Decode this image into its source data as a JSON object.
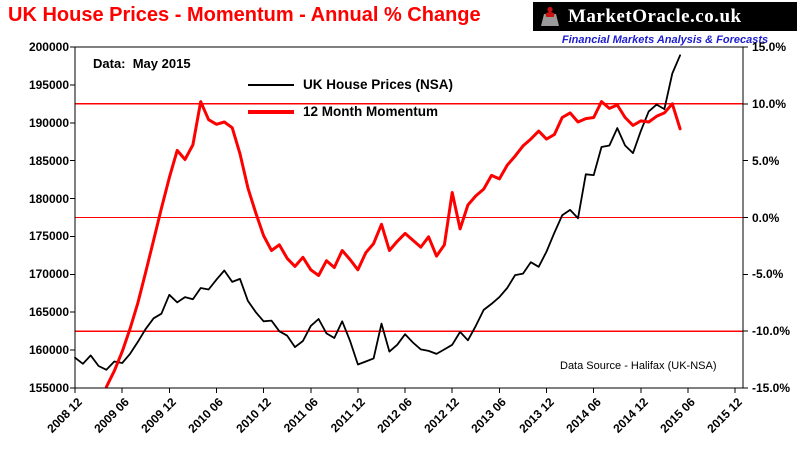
{
  "header": {
    "title": "UK House Prices - Momentum - Annual % Change",
    "logo": {
      "text": "MarketOracle.co.uk",
      "tagline": "Financial Markets Analysis & Forecasts",
      "background_color": "#000000",
      "tagline_color": "#1d1dcf"
    }
  },
  "chart_data": {
    "type": "line",
    "title": "UK House Prices - Momentum - Annual % Change",
    "annotation": "Data:  May 2015",
    "source_note": "Data Source - Halifax (UK-NSA)",
    "x_start_month": "2008-12",
    "x_end_month": "2015-05",
    "x_tick_step_months": 6,
    "x_domain_months": 85,
    "x_tick_labels": [
      "2008 12",
      "2009 06",
      "2009 12",
      "2010 06",
      "2010 12",
      "2011 06",
      "2011 12",
      "2012 06",
      "2012 12",
      "2013 06",
      "2013 12",
      "2014 06",
      "2014 12",
      "2015 06",
      "2015 12"
    ],
    "left_axis": {
      "min": 155000,
      "max": 200000,
      "step": 5000,
      "tick_labels": [
        "200000",
        "195000",
        "190000",
        "185000",
        "180000",
        "175000",
        "170000",
        "165000",
        "160000",
        "155000"
      ]
    },
    "right_axis": {
      "min": -15,
      "max": 15,
      "step": 5,
      "tick_labels": [
        "15.0%",
        "10.0%",
        "5.0%",
        "0.0%",
        "-5.0%",
        "-10.0%",
        "-15.0%"
      ]
    },
    "red_gridlines_percent": [
      10,
      0,
      -10
    ],
    "grid_color": "#ff0000",
    "legend_position": "top-center-inside",
    "series": [
      {
        "name": "UK House Prices (NSA)",
        "color": "#000000",
        "axis": "left",
        "values": [
          159000,
          158200,
          159300,
          157900,
          157400,
          158500,
          158300,
          159500,
          161100,
          162800,
          164200,
          164800,
          167300,
          166300,
          167000,
          166700,
          168200,
          168000,
          169300,
          170500,
          169000,
          169400,
          166500,
          165000,
          163800,
          163900,
          162500,
          161900,
          160400,
          161200,
          163200,
          164100,
          162200,
          161600,
          163800,
          161200,
          158100,
          158500,
          158900,
          163500,
          159800,
          160700,
          162100,
          161000,
          160100,
          159900,
          159500,
          160100,
          160700,
          162400,
          161300,
          163200,
          165300,
          166100,
          167000,
          168200,
          169900,
          170100,
          171600,
          171000,
          173000,
          175500,
          177800,
          178500,
          177400,
          183200,
          183100,
          186800,
          187000,
          189300,
          187000,
          186000,
          188900,
          191500,
          192400,
          191800,
          196500,
          198900
        ]
      },
      {
        "name": "12 Month Momentum",
        "color": "#ff0000",
        "axis": "right",
        "values": [
          null,
          null,
          null,
          null,
          -14.9,
          -13.5,
          -11.8,
          -9.8,
          -7.5,
          -4.8,
          -2.0,
          0.8,
          3.5,
          5.9,
          5.1,
          6.4,
          10.2,
          8.6,
          8.2,
          8.4,
          7.9,
          5.6,
          2.6,
          0.4,
          -1.6,
          -2.9,
          -2.4,
          -3.6,
          -4.3,
          -3.5,
          -4.6,
          -5.1,
          -3.8,
          -4.4,
          -2.9,
          -3.7,
          -4.6,
          -3.1,
          -2.3,
          -0.6,
          -2.9,
          -2.1,
          -1.4,
          -2.0,
          -2.6,
          -1.7,
          -3.4,
          -2.4,
          2.2,
          -1.0,
          1.1,
          1.9,
          2.5,
          3.7,
          3.4,
          4.6,
          5.4,
          6.3,
          6.9,
          7.6,
          6.9,
          7.3,
          8.8,
          9.2,
          8.4,
          8.7,
          8.8,
          10.2,
          9.6,
          9.9,
          8.8,
          8.1,
          8.5,
          8.4,
          8.9,
          9.2,
          10.0,
          7.8
        ]
      }
    ]
  }
}
